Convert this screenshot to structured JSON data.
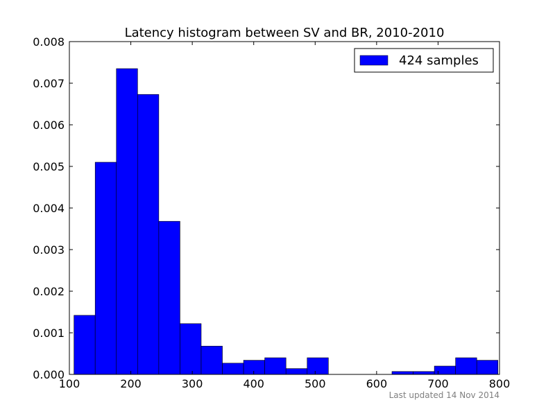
{
  "chart_data": {
    "type": "bar",
    "title": "Latency histogram between SV and BR, 2010-2010",
    "xlabel": "",
    "ylabel": "",
    "xlim": [
      100,
      800
    ],
    "ylim": [
      0,
      0.008
    ],
    "bar_color": "#0000ff",
    "x_ticks": [
      100,
      200,
      300,
      400,
      500,
      600,
      700,
      800
    ],
    "x_tick_labels": [
      "100",
      "200",
      "300",
      "400",
      "500",
      "600",
      "700",
      "800"
    ],
    "y_ticks": [
      0,
      0.001,
      0.002,
      0.003,
      0.004,
      0.005,
      0.006,
      0.007,
      0.008
    ],
    "y_tick_labels": [
      "0.000",
      "0.001",
      "0.002",
      "0.003",
      "0.004",
      "0.005",
      "0.006",
      "0.007",
      "0.008"
    ],
    "bin_edges": [
      107.5,
      142,
      176.5,
      211,
      245.5,
      280,
      314.5,
      349,
      383.5,
      418,
      452.5,
      487,
      521.5,
      556,
      590.5,
      625,
      659.5,
      694,
      728.5,
      763,
      797.5
    ],
    "density": [
      0.00142,
      0.0051,
      0.00735,
      0.00673,
      0.00368,
      0.00122,
      0.00068,
      0.00027,
      0.00034,
      0.0004,
      0.00014,
      0.0004,
      0,
      0,
      0,
      7e-05,
      7e-05,
      0.0002,
      0.0004,
      0.00034
    ],
    "legend": {
      "label": "424 samples",
      "location": "upper right"
    },
    "grid": false
  },
  "footer": {
    "updated": "Last updated 14 Nov 2014"
  }
}
